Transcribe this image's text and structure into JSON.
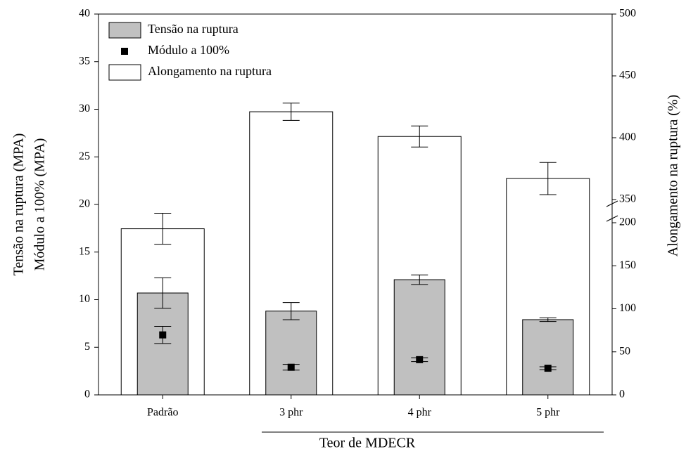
{
  "chart_data": {
    "type": "bar",
    "categories": [
      "Padrão",
      "3 phr",
      "4 phr",
      "5 phr"
    ],
    "xlabel": "Teor de MDECR",
    "ylabel": [
      "Tensão na ruptura (MPA)",
      "Módulo a 100% (MPA)"
    ],
    "y2label": "Alongamento na ruptura (%)",
    "ylim": [
      0,
      40
    ],
    "yticks": [
      0,
      5,
      10,
      15,
      20,
      25,
      30,
      35,
      40
    ],
    "y2lim": [
      0,
      500
    ],
    "y2ticks": [
      0,
      50,
      100,
      150,
      200,
      350,
      400,
      450,
      500
    ],
    "y2break": [
      200,
      350
    ],
    "legend": "upper left",
    "series": [
      {
        "name": "Tensão na ruptura",
        "kind": "bar",
        "color": "#c0c0c0",
        "axis": "y",
        "values": [
          10.7,
          8.8,
          12.1,
          7.9
        ],
        "errors": [
          1.6,
          0.9,
          0.5,
          0.2
        ]
      },
      {
        "name": "Módulo a 100%",
        "kind": "marker",
        "color": "#000000",
        "axis": "y",
        "values": [
          6.3,
          2.9,
          3.7,
          2.8
        ],
        "errors": [
          0.9,
          0.3,
          0.2,
          0.15
        ]
      },
      {
        "name": "Alongamento na ruptura",
        "kind": "bar",
        "color": "#ffffff",
        "axis": "y2",
        "values": [
          193,
          421,
          401,
          367
        ],
        "errors": [
          18,
          7,
          8.5,
          13
        ]
      }
    ]
  }
}
